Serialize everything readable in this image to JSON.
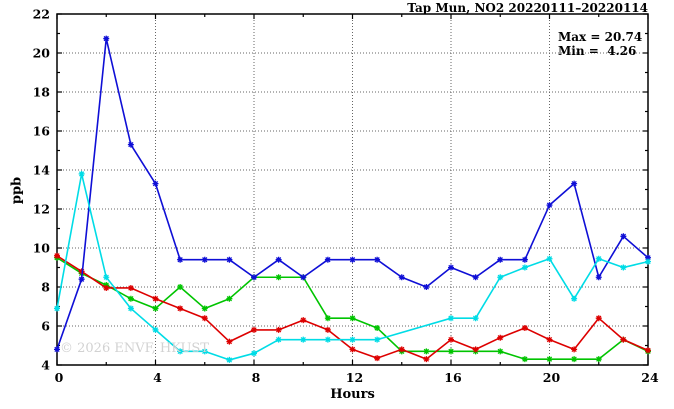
{
  "title": "Tap Mun, NO2 20220111–20220114",
  "annotation": {
    "max_label": "Max = 20.74",
    "min_label": "Min =  4.26"
  },
  "watermark": "© 2026 ENVF, HKUST",
  "chart_data": {
    "type": "line",
    "title": "Tap Mun, NO2 20220111–20220114",
    "xlabel": "Hours",
    "ylabel": "ppb",
    "xlim": [
      0,
      24
    ],
    "ylim": [
      4,
      22
    ],
    "grid": "dotted lines at every major tick, boxed border with inward ticks on all four sides",
    "legend_position": "none",
    "x_major_ticks": [
      0,
      4,
      8,
      12,
      16,
      20,
      24
    ],
    "x_tick_labels": [
      "0",
      "4",
      "8",
      "12",
      "16",
      "20",
      "24"
    ],
    "x_minor_ticks": [
      2,
      6,
      10,
      14,
      18,
      22
    ],
    "y_major_ticks": [
      4,
      6,
      8,
      10,
      12,
      14,
      16,
      18,
      20,
      22
    ],
    "y_tick_labels": [
      "4",
      "6",
      "8",
      "10",
      "12",
      "14",
      "16",
      "18",
      "20",
      "22"
    ],
    "y_minor_ticks": [
      5,
      7,
      9,
      11,
      13,
      15,
      17,
      19,
      21
    ],
    "marker": "asterisk-star at each hourly data point",
    "x": [
      0,
      1,
      2,
      3,
      4,
      5,
      6,
      7,
      8,
      9,
      10,
      11,
      12,
      13,
      14,
      15,
      16,
      17,
      18,
      19,
      20,
      21,
      22,
      23,
      24
    ],
    "series": [
      {
        "name": "series-green",
        "color": "#00c400",
        "values": [
          9.5,
          8.7,
          8.1,
          7.4,
          6.9,
          8.0,
          6.9,
          7.4,
          8.5,
          8.5,
          8.5,
          6.4,
          6.4,
          5.9,
          4.7,
          4.7,
          4.7,
          4.7,
          4.7,
          4.3,
          4.3,
          4.3,
          4.3,
          5.3,
          4.7
        ]
      },
      {
        "name": "series-red",
        "color": "#dd0000",
        "values": [
          9.6,
          8.8,
          7.95,
          7.95,
          7.4,
          6.9,
          6.4,
          5.2,
          5.8,
          5.8,
          6.3,
          5.8,
          4.8,
          4.35,
          4.8,
          4.3,
          5.3,
          4.8,
          5.4,
          5.9,
          5.3,
          4.8,
          6.4,
          5.3,
          4.75
        ]
      },
      {
        "name": "series-blue",
        "color": "#0f0fd6",
        "values": [
          4.8,
          8.4,
          20.74,
          15.3,
          13.3,
          9.4,
          9.4,
          9.4,
          8.5,
          9.4,
          8.5,
          9.4,
          9.4,
          9.4,
          8.5,
          8.0,
          9.0,
          8.5,
          9.4,
          9.4,
          12.2,
          13.3,
          8.5,
          10.6,
          9.5
        ]
      },
      {
        "name": "series-cyan",
        "color": "#00dce6",
        "values": [
          6.9,
          13.8,
          8.5,
          6.9,
          5.8,
          4.7,
          4.7,
          4.26,
          4.6,
          5.3,
          5.3,
          5.3,
          5.3,
          5.3,
          null,
          null,
          6.4,
          6.4,
          8.5,
          9.0,
          9.45,
          7.4,
          9.45,
          9.0,
          9.3
        ]
      }
    ],
    "annotations": {
      "max": 20.74,
      "min": 4.26
    }
  }
}
